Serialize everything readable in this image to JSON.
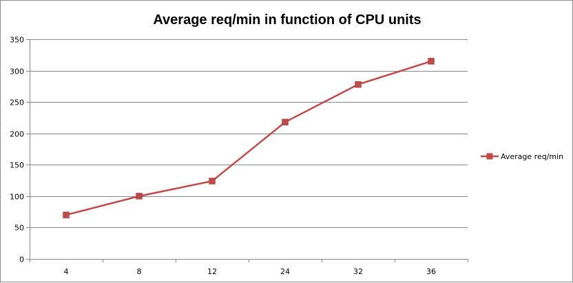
{
  "chart_data": {
    "type": "line",
    "title": "Average req/min in function of  CPU units",
    "categories": [
      "4",
      "8",
      "12",
      "24",
      "32",
      "36"
    ],
    "series": [
      {
        "name": "Average req/min",
        "values": [
          70,
          100,
          124,
          218,
          278,
          315
        ]
      }
    ],
    "ylim": [
      0,
      350
    ],
    "yticks": [
      "0",
      "50",
      "100",
      "150",
      "200",
      "250",
      "300",
      "350"
    ],
    "grid": "horizontal",
    "legend": "right",
    "colors": {
      "series": "#be4b48",
      "grid": "#868686",
      "axis": "#868686"
    }
  }
}
